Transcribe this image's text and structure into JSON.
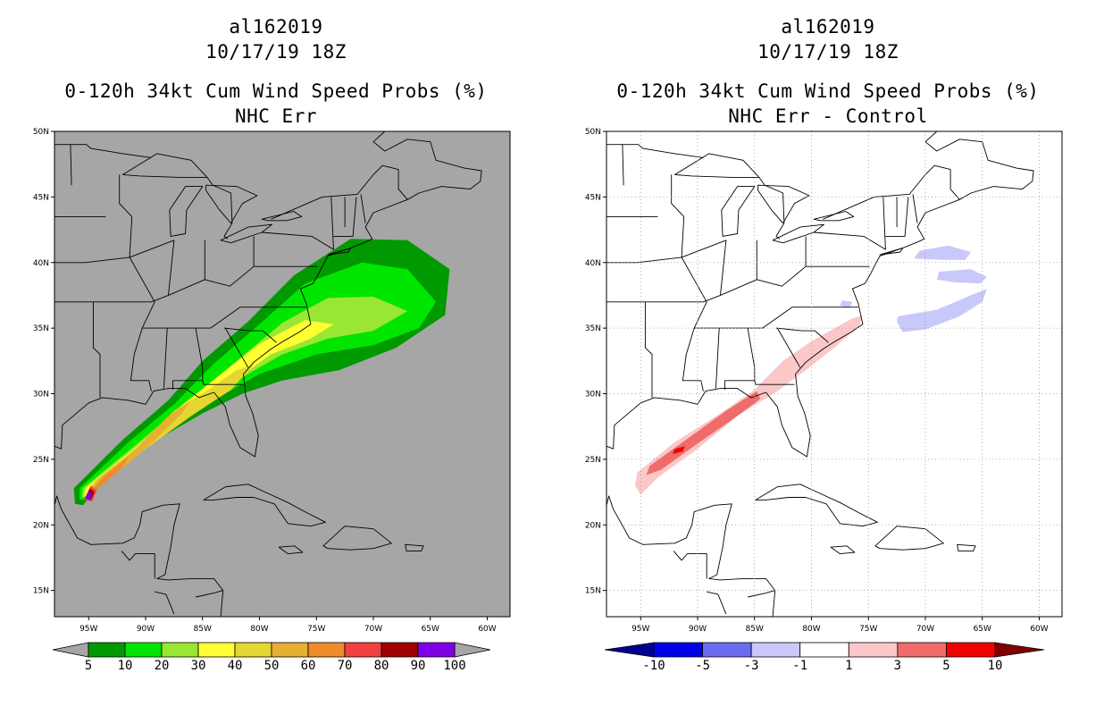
{
  "panels": [
    {
      "storm_id": "al162019",
      "datetime": "10/17/19 18Z",
      "product": "0-120h 34kt Cum Wind Speed Probs (%)",
      "subtitle": "NHC Err",
      "background": "#a6a6a6",
      "colorbar": {
        "under": "#a6a6a6",
        "over": "#a6a6a6",
        "colors": [
          "#009900",
          "#00e600",
          "#99e633",
          "#ffff33",
          "#e6d633",
          "#e6b033",
          "#f08a2a",
          "#f04040",
          "#a00000",
          "#8000e6"
        ],
        "labels": [
          "5",
          "10",
          "20",
          "30",
          "40",
          "50",
          "60",
          "70",
          "80",
          "90",
          "100"
        ]
      }
    },
    {
      "storm_id": "al162019",
      "datetime": "10/17/19 18Z",
      "product": "0-120h 34kt Cum Wind Speed Probs (%)",
      "subtitle": "NHC Err - Control",
      "background": "#ffffff",
      "colorbar": {
        "under": "#00008c",
        "over": "#800000",
        "colors": [
          "#0000e6",
          "#6b6bf0",
          "#c8c8fa",
          "#ffffff",
          "#fac8c8",
          "#f06b6b",
          "#f00000"
        ],
        "labels": [
          "-10",
          "-5",
          "-3",
          "-1",
          "1",
          "3",
          "5",
          "10"
        ]
      }
    }
  ],
  "map": {
    "lon_labels": [
      "95W",
      "90W",
      "85W",
      "80W",
      "75W",
      "70W",
      "65W",
      "60W"
    ],
    "lat_labels": [
      "15N",
      "20N",
      "25N",
      "30N",
      "35N",
      "40N",
      "45N",
      "50N"
    ]
  },
  "chart_data": [
    {
      "type": "heatmap",
      "title": "0-120h 34kt Cum Wind Speed Probs (%) - NHC Err",
      "units": "%",
      "extent": {
        "lon": [
          -98,
          -58
        ],
        "lat": [
          13,
          50
        ]
      },
      "levels": [
        5,
        10,
        20,
        30,
        40,
        50,
        60,
        70,
        80,
        90,
        100
      ],
      "storm_swath": "probability swath from about 22N 95.5W (max >90%) northeastward along Gulf coast, Georgia/Carolinas to about 38N 63W (5-10%)",
      "contours": [
        {
          "level": 5,
          "color": "#009900",
          "polygon": [
            [
              -96.2,
              21.6
            ],
            [
              -96.3,
              22.8
            ],
            [
              -92,
              26.5
            ],
            [
              -88,
              29.5
            ],
            [
              -85,
              32.5
            ],
            [
              -81,
              35.5
            ],
            [
              -77,
              39
            ],
            [
              -72,
              41.8
            ],
            [
              -67,
              41.7
            ],
            [
              -63.3,
              39.5
            ],
            [
              -63.7,
              36
            ],
            [
              -68,
              33.5
            ],
            [
              -73,
              31.8
            ],
            [
              -78,
              31
            ],
            [
              -81.5,
              30
            ],
            [
              -85,
              28.5
            ],
            [
              -90,
              26
            ],
            [
              -93.5,
              23.5
            ],
            [
              -95.5,
              21.5
            ]
          ]
        },
        {
          "level": 10,
          "color": "#00e600",
          "polygon": [
            [
              -95.8,
              21.9
            ],
            [
              -95.8,
              22.8
            ],
            [
              -91.5,
              26.3
            ],
            [
              -87.5,
              29.2
            ],
            [
              -84,
              32.3
            ],
            [
              -80,
              35.3
            ],
            [
              -76,
              38.4
            ],
            [
              -71,
              40
            ],
            [
              -67,
              39.5
            ],
            [
              -64.5,
              37
            ],
            [
              -66,
              35
            ],
            [
              -70,
              33.7
            ],
            [
              -75,
              33
            ],
            [
              -80,
              31.5
            ],
            [
              -84,
              29.5
            ],
            [
              -88.5,
              27.2
            ],
            [
              -92.5,
              24.5
            ],
            [
              -95,
              22
            ]
          ]
        },
        {
          "level": 20,
          "color": "#99e633",
          "polygon": [
            [
              -95.6,
              22
            ],
            [
              -95.5,
              22.8
            ],
            [
              -91,
              26
            ],
            [
              -86.5,
              29.3
            ],
            [
              -82,
              32.5
            ],
            [
              -78,
              35.4
            ],
            [
              -74,
              37.3
            ],
            [
              -70,
              37.4
            ],
            [
              -67,
              36.3
            ],
            [
              -70,
              34.8
            ],
            [
              -74,
              34.2
            ],
            [
              -78,
              33
            ],
            [
              -82,
              31
            ],
            [
              -86,
              28.8
            ],
            [
              -90,
              26.3
            ],
            [
              -93.5,
              23.5
            ]
          ]
        },
        {
          "level": 30,
          "color": "#ffff33",
          "polygon": [
            [
              -95.4,
              22.1
            ],
            [
              -95.3,
              22.8
            ],
            [
              -91,
              25.8
            ],
            [
              -87,
              29
            ],
            [
              -83.5,
              31.4
            ],
            [
              -80,
              33.8
            ],
            [
              -76,
              35.6
            ],
            [
              -73.5,
              35.3
            ],
            [
              -75.5,
              34.2
            ],
            [
              -79,
              33
            ],
            [
              -82.5,
              30.8
            ],
            [
              -86,
              28.5
            ],
            [
              -90,
              26
            ],
            [
              -93.5,
              23.4
            ]
          ]
        },
        {
          "level": 40,
          "color": "#e6d633",
          "polygon": [
            [
              -95.3,
              22.2
            ],
            [
              -94.5,
              23.3
            ],
            [
              -91,
              25.7
            ],
            [
              -87.5,
              28.7
            ],
            [
              -84.5,
              30.3
            ],
            [
              -82,
              31.8
            ],
            [
              -80.5,
              32.2
            ],
            [
              -82.5,
              30.3
            ],
            [
              -86,
              28.3
            ],
            [
              -90,
              25.8
            ],
            [
              -93.5,
              23.3
            ]
          ]
        },
        {
          "level": 50,
          "color": "#e6b033",
          "polygon": [
            [
              -95.2,
              22.3
            ],
            [
              -94,
              23.6
            ],
            [
              -91,
              25.7
            ],
            [
              -88,
              28.3
            ],
            [
              -86,
              29.5
            ],
            [
              -86.8,
              28.5
            ],
            [
              -89.5,
              26.2
            ],
            [
              -92.5,
              24
            ]
          ]
        },
        {
          "level": 60,
          "color": "#f08a2a",
          "polygon": [
            [
              -95.1,
              22.3
            ],
            [
              -93.5,
              23.8
            ],
            [
              -91.5,
              25.2
            ],
            [
              -92,
              24.4
            ],
            [
              -94,
              22.9
            ]
          ]
        },
        {
          "level": 70,
          "color": "#f04040",
          "polygon": [
            [
              -95.4,
              21.9
            ],
            [
              -94.8,
              23
            ],
            [
              -94.3,
              22.6
            ],
            [
              -94.7,
              21.8
            ]
          ]
        },
        {
          "level": 80,
          "color": "#a00000",
          "polygon": [
            [
              -95.3,
              22
            ],
            [
              -94.9,
              22.8
            ],
            [
              -94.5,
              22.5
            ],
            [
              -94.8,
              21.9
            ]
          ]
        },
        {
          "level": 90,
          "color": "#8000e6",
          "polygon": [
            [
              -95.3,
              22
            ],
            [
              -95,
              22.6
            ],
            [
              -94.7,
              22.3
            ],
            [
              -94.9,
              21.9
            ]
          ]
        }
      ]
    },
    {
      "type": "heatmap",
      "title": "0-120h 34kt Cum Wind Speed Probs (%) - NHC Err - Control",
      "units": "% difference",
      "extent": {
        "lon": [
          -98,
          -58
        ],
        "lat": [
          13,
          50
        ]
      },
      "levels": [
        -10,
        -5,
        -3,
        -1,
        1,
        3,
        5,
        10
      ],
      "contours": [
        {
          "level": 1,
          "color": "#fac8c8",
          "polygon": [
            [
              -95.5,
              23
            ],
            [
              -95.3,
              24
            ],
            [
              -92,
              26.3
            ],
            [
              -88,
              28.5
            ],
            [
              -85,
              30.3
            ],
            [
              -82.5,
              32.5
            ],
            [
              -80,
              34
            ],
            [
              -76.5,
              35.7
            ],
            [
              -75.5,
              36
            ],
            [
              -75.8,
              35.2
            ],
            [
              -78,
              33.5
            ],
            [
              -80.5,
              31.8
            ],
            [
              -83,
              30.2
            ],
            [
              -86.5,
              28.3
            ],
            [
              -90,
              25.8
            ],
            [
              -93.5,
              23.6
            ],
            [
              -95,
              22.3
            ]
          ]
        },
        {
          "level": 3,
          "color": "#f06b6b",
          "polygon": [
            [
              -94.5,
              23.8
            ],
            [
              -94.2,
              24.5
            ],
            [
              -91,
              26.5
            ],
            [
              -87.5,
              28.7
            ],
            [
              -84.8,
              30.2
            ],
            [
              -84.5,
              29.6
            ],
            [
              -87,
              28
            ],
            [
              -90.5,
              25.9
            ],
            [
              -93.2,
              24.2
            ]
          ]
        },
        {
          "level": 5,
          "color": "#f00000",
          "polygon": [
            [
              -92.2,
              25.4
            ],
            [
              -92,
              25.8
            ],
            [
              -91.1,
              26
            ],
            [
              -91.3,
              25.6
            ]
          ]
        },
        {
          "level": -1,
          "color": "#c8c8fa",
          "polygon": [
            [
              -72.5,
              35.5
            ],
            [
              -72.4,
              35.9
            ],
            [
              -69,
              36.4
            ],
            [
              -66,
              37.5
            ],
            [
              -64.6,
              38
            ],
            [
              -65,
              37
            ],
            [
              -67,
              35.9
            ],
            [
              -70,
              34.9
            ],
            [
              -72,
              34.7
            ]
          ]
        },
        {
          "level": -1,
          "color": "#c8c8fa",
          "polygon": [
            [
              -71,
              40.3
            ],
            [
              -70.5,
              40.9
            ],
            [
              -68,
              41.3
            ],
            [
              -66,
              40.8
            ],
            [
              -66.5,
              40.2
            ],
            [
              -68.5,
              40.2
            ]
          ]
        },
        {
          "level": -1,
          "color": "#c8c8fa",
          "polygon": [
            [
              -69,
              38.7
            ],
            [
              -68.8,
              39.3
            ],
            [
              -66,
              39.5
            ],
            [
              -64.6,
              38.9
            ],
            [
              -65.2,
              38.4
            ],
            [
              -67.5,
              38.5
            ]
          ]
        },
        {
          "level": -1,
          "color": "#c8c8fa",
          "polygon": [
            [
              -77.5,
              36.7
            ],
            [
              -77.3,
              37.1
            ],
            [
              -76.4,
              37
            ],
            [
              -76.6,
              36.6
            ]
          ]
        }
      ]
    }
  ]
}
